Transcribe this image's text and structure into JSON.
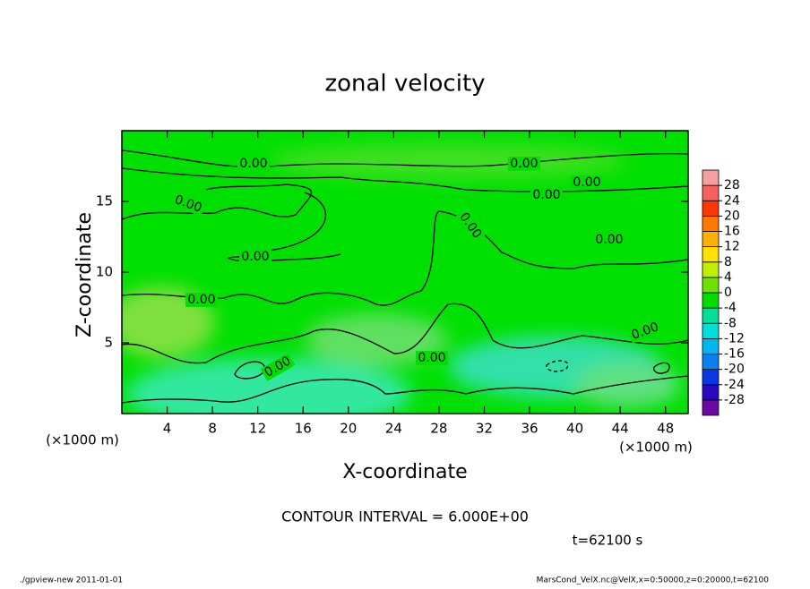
{
  "chart_data": {
    "type": "contour",
    "title": "zonal velocity",
    "xlabel": "X-coordinate",
    "ylabel": "Z-coordinate",
    "xunit": "(×1000 m)",
    "yunit": "(×1000 m)",
    "xlim": [
      0,
      50
    ],
    "ylim": [
      0,
      20
    ],
    "xticks": [
      4,
      8,
      12,
      16,
      20,
      24,
      28,
      32,
      36,
      40,
      44,
      48
    ],
    "yticks": [
      5,
      10,
      15
    ],
    "contour_labels": [
      "0.00",
      "0.00",
      "0.00",
      "0.00",
      "0.00",
      "0.00",
      "0.00",
      "0.00",
      "0.00",
      "0.00",
      "0.00",
      "0.00"
    ],
    "colorbar": {
      "levels": [
        -28,
        -24,
        -20,
        -16,
        -12,
        -8,
        -4,
        0,
        4,
        8,
        12,
        16,
        20,
        24,
        28
      ],
      "colors": [
        "#6a0aa0",
        "#2a08c0",
        "#0838e0",
        "#0a80f0",
        "#00b8f0",
        "#00e0d8",
        "#00e098",
        "#00dc00",
        "#70e000",
        "#c0f000",
        "#ffe000",
        "#ffb000",
        "#ff7800",
        "#ff3800",
        "#f86060",
        "#f4a0a0"
      ]
    },
    "contour_interval": "CONTOUR INTERVAL = 6.000E+00",
    "time_label": "t=62100 s",
    "footer_left": "./gpview-new  2011-01-01",
    "footer_right": "MarsCond_VelX.nc@VelX,x=0:50000,z=0:20000,t=62100"
  }
}
